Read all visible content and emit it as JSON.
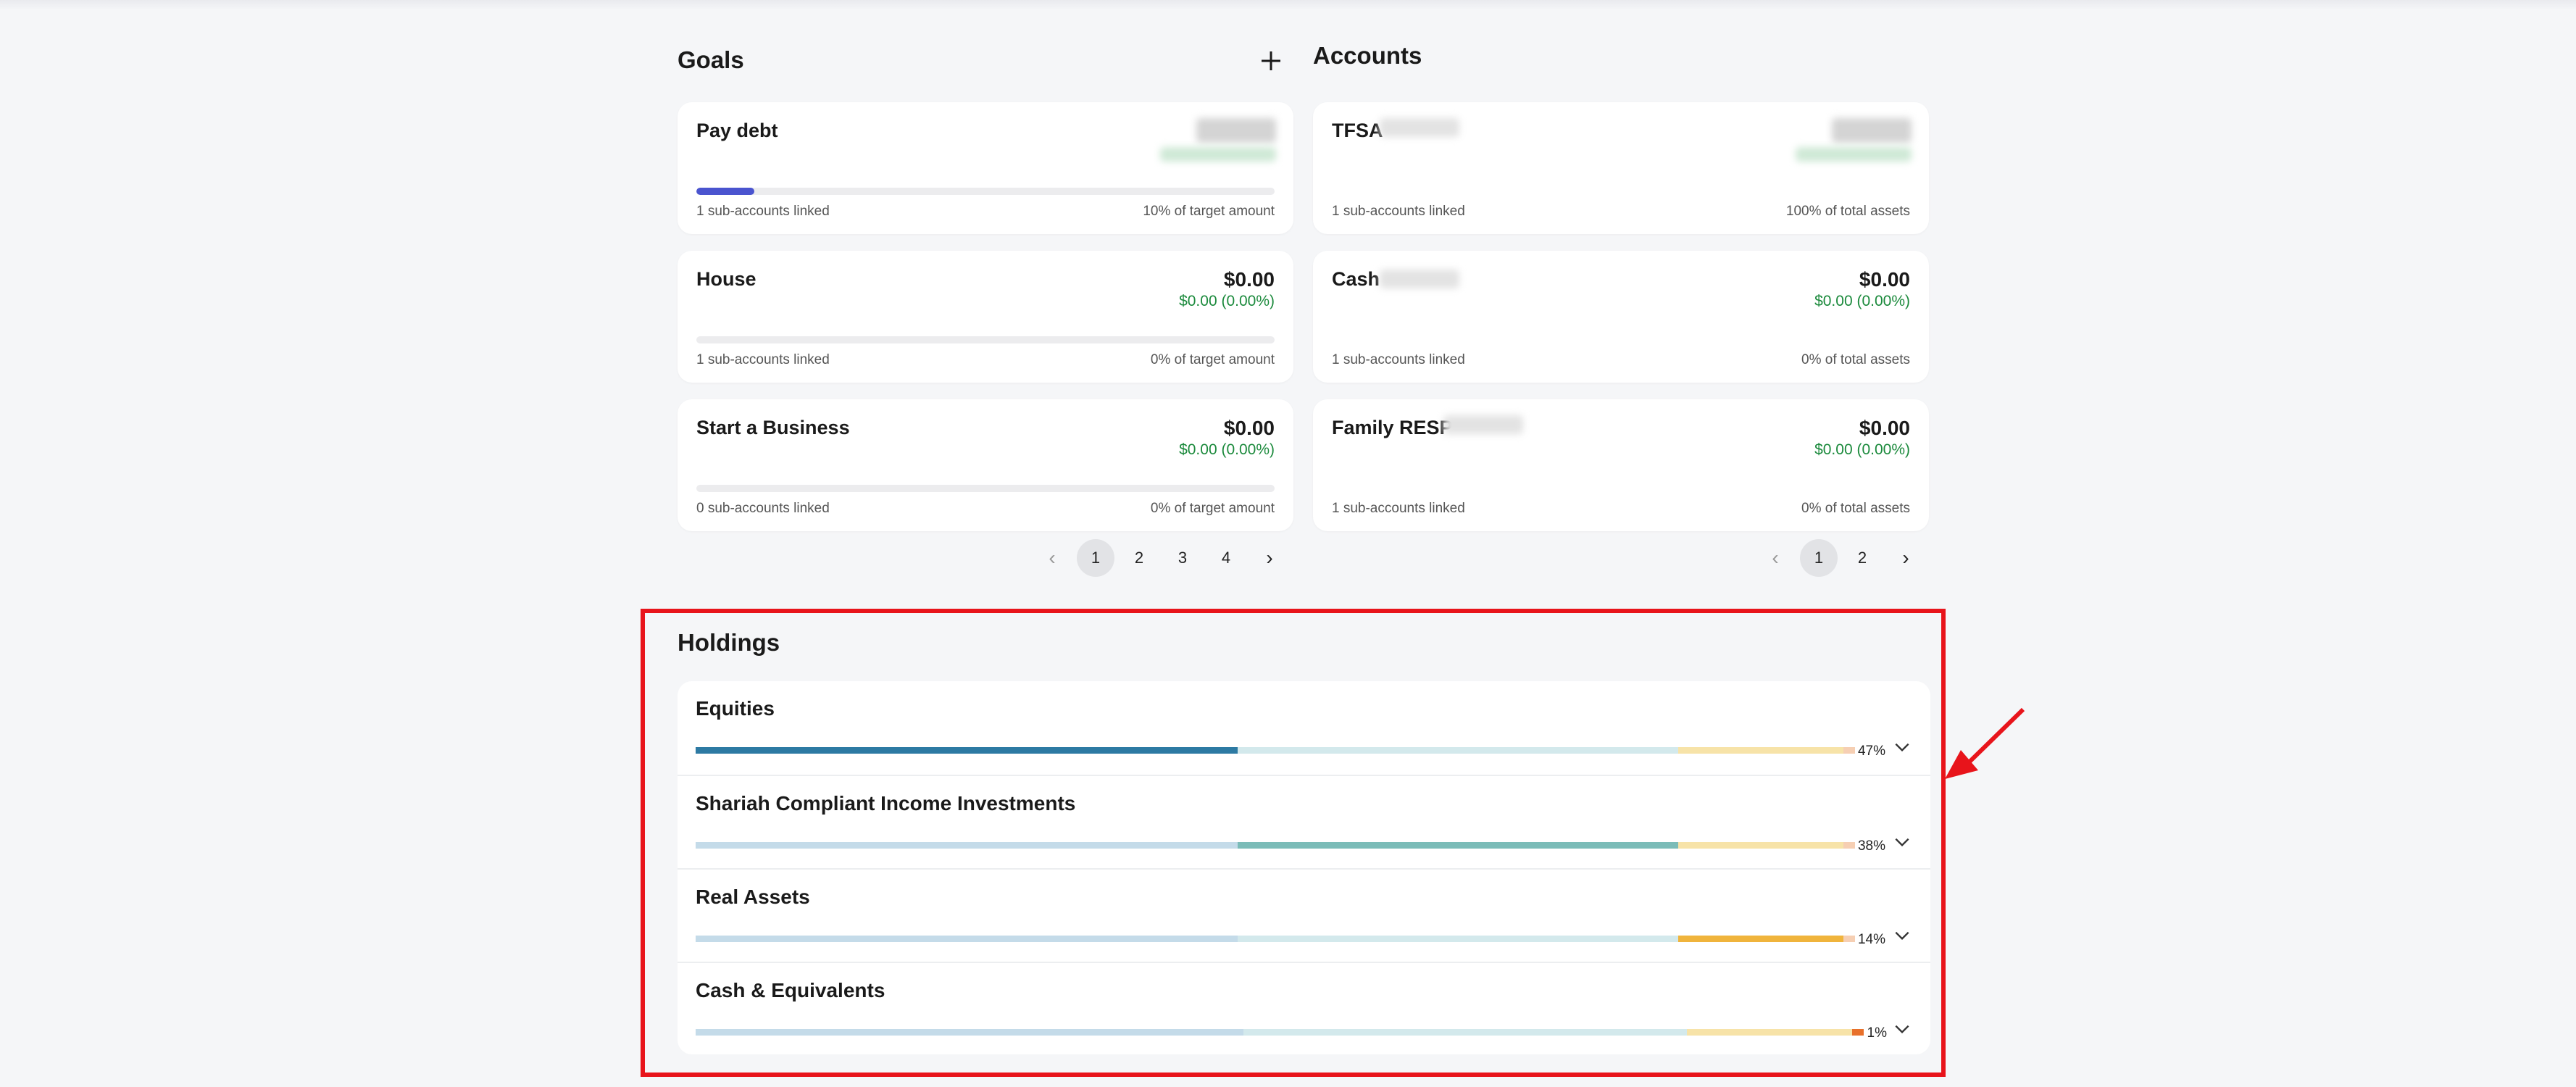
{
  "goals": {
    "title": "Goals",
    "add_icon": "plus-icon",
    "items": [
      {
        "name": "Pay debt",
        "amount": "",
        "change": "",
        "linked": "1 sub-accounts linked",
        "target": "10% of target amount",
        "progress": 0.1,
        "blurred": true
      },
      {
        "name": "House",
        "amount": "$0.00",
        "change": "$0.00 (0.00%)",
        "linked": "1 sub-accounts linked",
        "target": "0% of target amount",
        "progress": 0,
        "blurred": false
      },
      {
        "name": "Start a Business",
        "amount": "$0.00",
        "change": "$0.00 (0.00%)",
        "linked": "0 sub-accounts linked",
        "target": "0% of target amount",
        "progress": 0,
        "blurred": false
      }
    ],
    "pagination": {
      "pages": [
        "1",
        "2",
        "3",
        "4"
      ],
      "current": "1",
      "prev_icon": "chevron-left-icon",
      "next_icon": "chevron-right-icon"
    }
  },
  "accounts": {
    "title": "Accounts",
    "items": [
      {
        "name": "TFSA",
        "amount": "",
        "change": "",
        "linked": "1 sub-accounts linked",
        "share": "100% of total assets",
        "blurred": true
      },
      {
        "name": "Cash",
        "amount": "$0.00",
        "change": "$0.00 (0.00%)",
        "linked": "1 sub-accounts linked",
        "share": "0% of total assets",
        "blurred": false
      },
      {
        "name": "Family RESP",
        "amount": "$0.00",
        "change": "$0.00 (0.00%)",
        "linked": "1 sub-accounts linked",
        "share": "0% of total assets",
        "blurred": false
      }
    ],
    "pagination": {
      "pages": [
        "1",
        "2"
      ],
      "current": "1",
      "prev_icon": "chevron-left-icon",
      "next_icon": "chevron-right-icon"
    }
  },
  "holdings": {
    "title": "Holdings",
    "expand_icon": "chevron-down-icon",
    "items": [
      {
        "name": "Equities",
        "percent": "47%"
      },
      {
        "name": "Shariah Compliant Income Investments",
        "percent": "38%"
      },
      {
        "name": "Real Assets",
        "percent": "14%"
      },
      {
        "name": "Cash & Equivalents",
        "percent": "1%"
      }
    ],
    "colors": {
      "equities": "#2d7aa3",
      "shariah": "#7bbcb8",
      "real_assets": "#f0b43c",
      "cash": "#e8702a",
      "equities_muted": "#c4dbe9",
      "shariah_muted": "#d3e9ec",
      "real_assets_muted": "#f7e3a8",
      "cash_muted": "#f6cfb3"
    }
  },
  "annotation": {
    "outline_color": "#e8141b",
    "pointer_icon": "red-arrow-icon"
  }
}
